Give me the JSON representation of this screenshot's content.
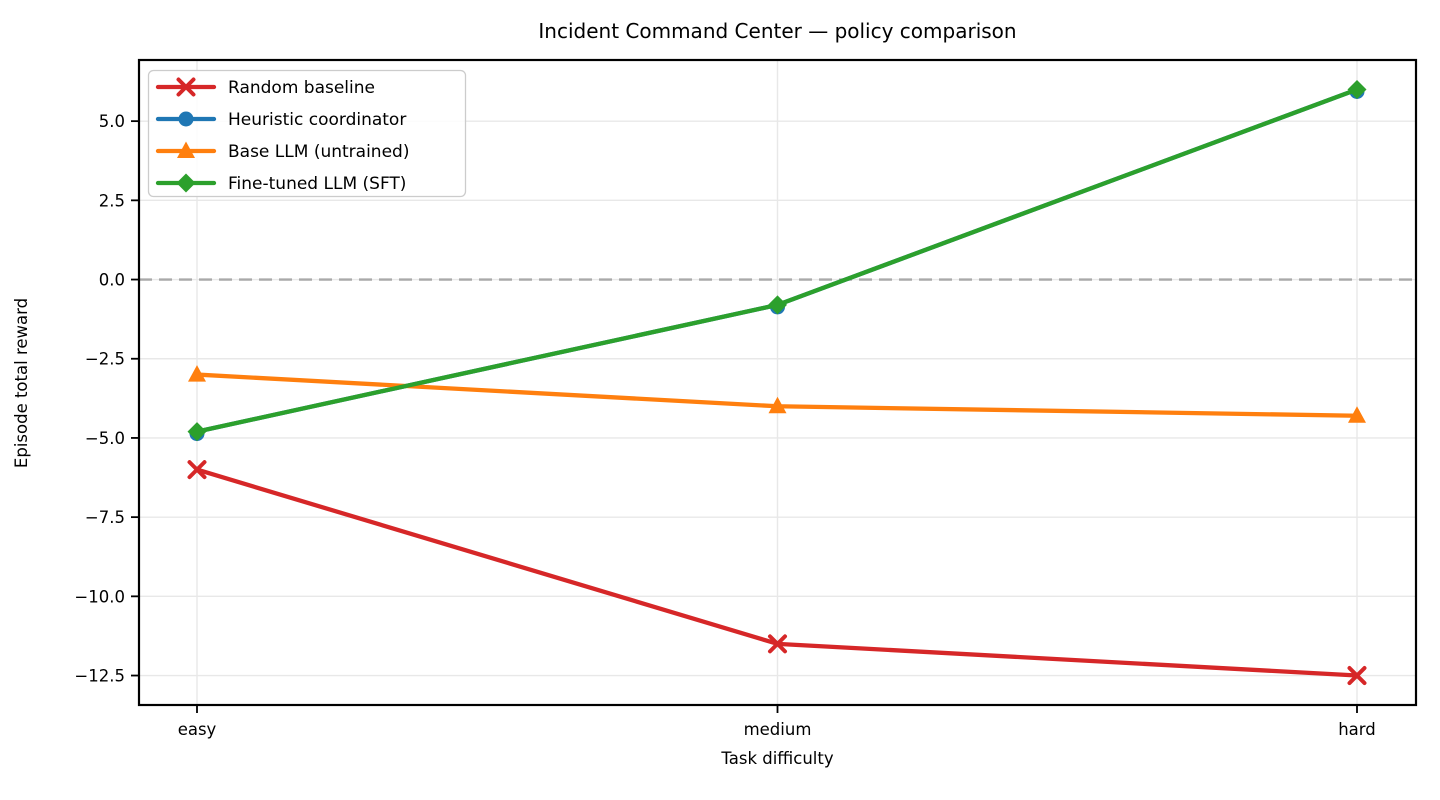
{
  "chart_data": {
    "type": "line",
    "title": "Incident Command Center — policy comparison",
    "xlabel": "Task difficulty",
    "ylabel": "Episode total reward",
    "categories": [
      "easy",
      "medium",
      "hard"
    ],
    "series": [
      {
        "name": "Random baseline",
        "color": "#d62728",
        "marker": "x",
        "values": [
          -6.0,
          -11.5,
          -12.5
        ]
      },
      {
        "name": "Heuristic coordinator",
        "color": "#1f77b4",
        "marker": "circle",
        "values": [
          -4.8,
          -0.8,
          6.0
        ]
      },
      {
        "name": "Base LLM (untrained)",
        "color": "#ff7f0e",
        "marker": "triangle-up",
        "values": [
          -3.0,
          -4.0,
          -4.3
        ]
      },
      {
        "name": "Fine-tuned LLM (SFT)",
        "color": "#2ca02c",
        "marker": "diamond",
        "values": [
          -4.8,
          -0.8,
          6.0
        ]
      }
    ],
    "ylim": [
      -13.43,
      6.93
    ],
    "yticks": [
      5.0,
      2.5,
      0.0,
      -2.5,
      -5.0,
      -7.5,
      -10.0,
      -12.5
    ],
    "ytick_labels": [
      "5.0",
      "2.5",
      "0.0",
      "−2.5",
      "−5.0",
      "−7.5",
      "−10.0",
      "−12.5"
    ],
    "zero_line": {
      "value": 0,
      "style": "dashed",
      "color": "#a9a9a9"
    },
    "grid": true,
    "grid_color": "#e8e8e8",
    "axis_color": "#000000",
    "background_color": "#ffffff",
    "legend": {
      "position": "upper left",
      "entries": [
        "Random baseline",
        "Heuristic coordinator",
        "Base LLM (untrained)",
        "Fine-tuned LLM (SFT)"
      ]
    }
  }
}
